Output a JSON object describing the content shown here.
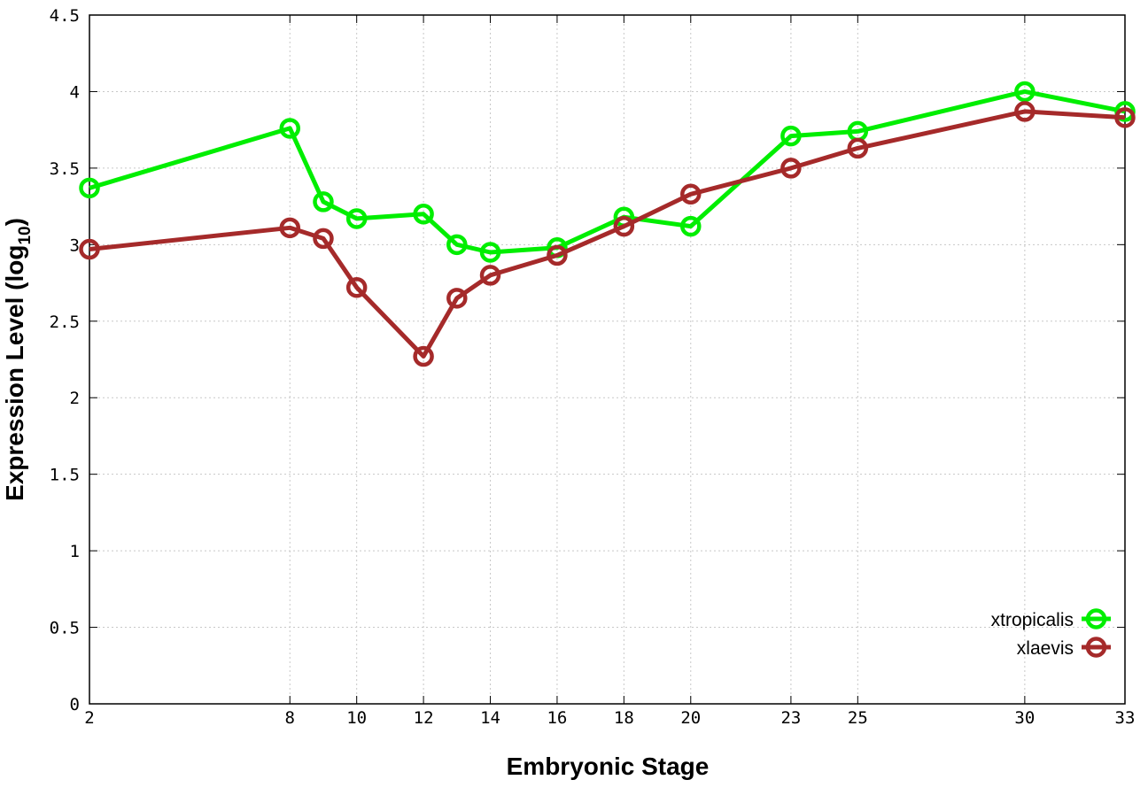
{
  "chart_data": {
    "type": "line",
    "xlabel": "Embryonic Stage",
    "ylabel": "Expression Level (log",
    "ylabel_subscript": "10",
    "ylabel_close": ")",
    "x_ticks": [
      2,
      8,
      10,
      12,
      14,
      16,
      18,
      20,
      23,
      25,
      30,
      33
    ],
    "y_ticks": [
      "0",
      "0.5",
      "1",
      "1.5",
      "2",
      "2.5",
      "3",
      "3.5",
      "4",
      "4.5"
    ],
    "xlim": [
      2,
      33
    ],
    "ylim": [
      0,
      4.5
    ],
    "grid": true,
    "legend_position": "bottom-right",
    "series": [
      {
        "name": "xtropicalis",
        "color": "#00ee00",
        "x": [
          2,
          8,
          9,
          10,
          12,
          13,
          14,
          16,
          18,
          20,
          23,
          25,
          30,
          33
        ],
        "values": [
          3.37,
          3.76,
          3.28,
          3.17,
          3.2,
          3.0,
          2.95,
          2.98,
          3.18,
          3.12,
          3.71,
          3.74,
          4.0,
          3.87
        ]
      },
      {
        "name": "xlaevis",
        "color": "#a52a2a",
        "x": [
          2,
          8,
          9,
          10,
          12,
          13,
          14,
          16,
          18,
          20,
          23,
          25,
          30,
          33
        ],
        "values": [
          2.97,
          3.11,
          3.04,
          2.72,
          2.27,
          2.65,
          2.8,
          2.93,
          3.12,
          3.33,
          3.5,
          3.63,
          3.87,
          3.83
        ]
      }
    ]
  }
}
